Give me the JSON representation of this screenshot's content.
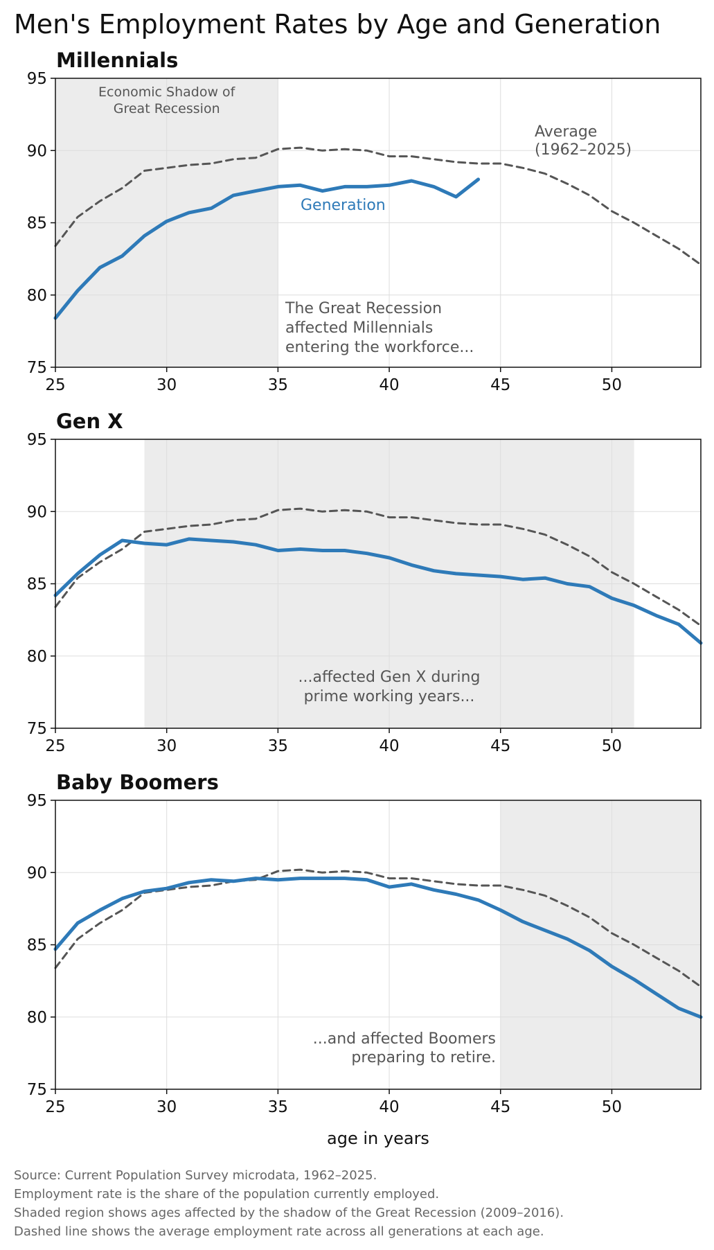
{
  "title": "Men's Employment Rates by Age and Generation",
  "colors": {
    "generation": "#2e7ab8",
    "average": "#555555",
    "shade": "#ececec",
    "grid": "#dddddd"
  },
  "chart_data": [
    {
      "type": "line",
      "title": "Millennials",
      "xlim": [
        25,
        54
      ],
      "ylim": [
        75,
        95
      ],
      "xticks": [
        25,
        30,
        35,
        40,
        45,
        50
      ],
      "yticks": [
        75,
        80,
        85,
        90,
        95
      ],
      "grid": true,
      "shaded_region": {
        "x": [
          25,
          35
        ],
        "label": "Economic Shadow of\nGreat Recession"
      },
      "series": [
        {
          "name": "Generation",
          "style": "solid",
          "x": [
            25,
            26,
            27,
            28,
            29,
            30,
            31,
            32,
            33,
            34,
            35,
            36,
            37,
            38,
            39,
            40,
            41,
            42,
            43,
            44
          ],
          "values": [
            78.4,
            80.3,
            81.9,
            82.7,
            84.1,
            85.1,
            85.7,
            86.0,
            86.9,
            87.2,
            87.5,
            87.6,
            87.2,
            87.5,
            87.5,
            87.6,
            87.9,
            87.5,
            86.8,
            88.0
          ]
        },
        {
          "name": "Average\n(1962–2025)",
          "style": "dashed",
          "x": [
            25,
            26,
            27,
            28,
            29,
            30,
            31,
            32,
            33,
            34,
            35,
            36,
            37,
            38,
            39,
            40,
            41,
            42,
            43,
            44,
            45,
            46,
            47,
            48,
            49,
            50,
            51,
            52,
            53,
            54
          ],
          "values": [
            83.4,
            85.4,
            86.5,
            87.4,
            88.6,
            88.8,
            89.0,
            89.1,
            89.4,
            89.5,
            90.1,
            90.2,
            90.0,
            90.1,
            90.0,
            89.6,
            89.6,
            89.4,
            89.2,
            89.1,
            89.1,
            88.8,
            88.4,
            87.7,
            86.9,
            85.8,
            85.0,
            84.1,
            83.2,
            82.1
          ]
        }
      ],
      "annotation": "The Great Recession\naffected Millennials\nentering the workforce..."
    },
    {
      "type": "line",
      "title": "Gen X",
      "xlim": [
        25,
        54
      ],
      "ylim": [
        75,
        95
      ],
      "xticks": [
        25,
        30,
        35,
        40,
        45,
        50
      ],
      "yticks": [
        75,
        80,
        85,
        90,
        95
      ],
      "grid": true,
      "shaded_region": {
        "x": [
          29,
          51
        ]
      },
      "series": [
        {
          "name": "",
          "style": "solid",
          "x": [
            25,
            26,
            27,
            28,
            29,
            30,
            31,
            32,
            33,
            34,
            35,
            36,
            37,
            38,
            39,
            40,
            41,
            42,
            43,
            44,
            45,
            46,
            47,
            48,
            49,
            50,
            51,
            52,
            53,
            54
          ],
          "values": [
            84.2,
            85.7,
            87.0,
            88.0,
            87.8,
            87.7,
            88.1,
            88.0,
            87.9,
            87.7,
            87.3,
            87.4,
            87.3,
            87.3,
            87.1,
            86.8,
            86.3,
            85.9,
            85.7,
            85.6,
            85.5,
            85.3,
            85.4,
            85.0,
            84.8,
            84.0,
            83.5,
            82.8,
            82.2,
            80.9
          ]
        },
        {
          "name": "",
          "style": "dashed",
          "x": [
            25,
            26,
            27,
            28,
            29,
            30,
            31,
            32,
            33,
            34,
            35,
            36,
            37,
            38,
            39,
            40,
            41,
            42,
            43,
            44,
            45,
            46,
            47,
            48,
            49,
            50,
            51,
            52,
            53,
            54
          ],
          "values": [
            83.4,
            85.4,
            86.5,
            87.4,
            88.6,
            88.8,
            89.0,
            89.1,
            89.4,
            89.5,
            90.1,
            90.2,
            90.0,
            90.1,
            90.0,
            89.6,
            89.6,
            89.4,
            89.2,
            89.1,
            89.1,
            88.8,
            88.4,
            87.7,
            86.9,
            85.8,
            85.0,
            84.1,
            83.2,
            82.1
          ]
        }
      ],
      "annotation": "...affected Gen X during\nprime working years..."
    },
    {
      "type": "line",
      "title": "Baby Boomers",
      "xlabel": "age in years",
      "xlim": [
        25,
        54
      ],
      "ylim": [
        75,
        95
      ],
      "xticks": [
        25,
        30,
        35,
        40,
        45,
        50
      ],
      "yticks": [
        75,
        80,
        85,
        90,
        95
      ],
      "grid": true,
      "shaded_region": {
        "x": [
          45,
          54
        ]
      },
      "series": [
        {
          "name": "",
          "style": "solid",
          "x": [
            25,
            26,
            27,
            28,
            29,
            30,
            31,
            32,
            33,
            34,
            35,
            36,
            37,
            38,
            39,
            40,
            41,
            42,
            43,
            44,
            45,
            46,
            47,
            48,
            49,
            50,
            51,
            52,
            53,
            54
          ],
          "values": [
            84.7,
            86.5,
            87.4,
            88.2,
            88.7,
            88.9,
            89.3,
            89.5,
            89.4,
            89.6,
            89.5,
            89.6,
            89.6,
            89.6,
            89.5,
            89.0,
            89.2,
            88.8,
            88.5,
            88.1,
            87.4,
            86.6,
            86.0,
            85.4,
            84.6,
            83.5,
            82.6,
            81.6,
            80.6,
            80.0
          ]
        },
        {
          "name": "",
          "style": "dashed",
          "x": [
            25,
            26,
            27,
            28,
            29,
            30,
            31,
            32,
            33,
            34,
            35,
            36,
            37,
            38,
            39,
            40,
            41,
            42,
            43,
            44,
            45,
            46,
            47,
            48,
            49,
            50,
            51,
            52,
            53,
            54
          ],
          "values": [
            83.4,
            85.4,
            86.5,
            87.4,
            88.6,
            88.8,
            89.0,
            89.1,
            89.4,
            89.5,
            90.1,
            90.2,
            90.0,
            90.1,
            90.0,
            89.6,
            89.6,
            89.4,
            89.2,
            89.1,
            89.1,
            88.8,
            88.4,
            87.7,
            86.9,
            85.8,
            85.0,
            84.1,
            83.2,
            82.1
          ]
        }
      ],
      "annotation": "...and affected Boomers\npreparing to retire."
    }
  ],
  "source_notes": [
    "Source: Current Population Survey microdata, 1962–2025.",
    "Employment rate is the share of the population currently employed.",
    "Shaded region shows ages affected by the shadow of the Great Recession (2009–2016).",
    "Dashed line shows the average employment rate across all generations at each age."
  ]
}
